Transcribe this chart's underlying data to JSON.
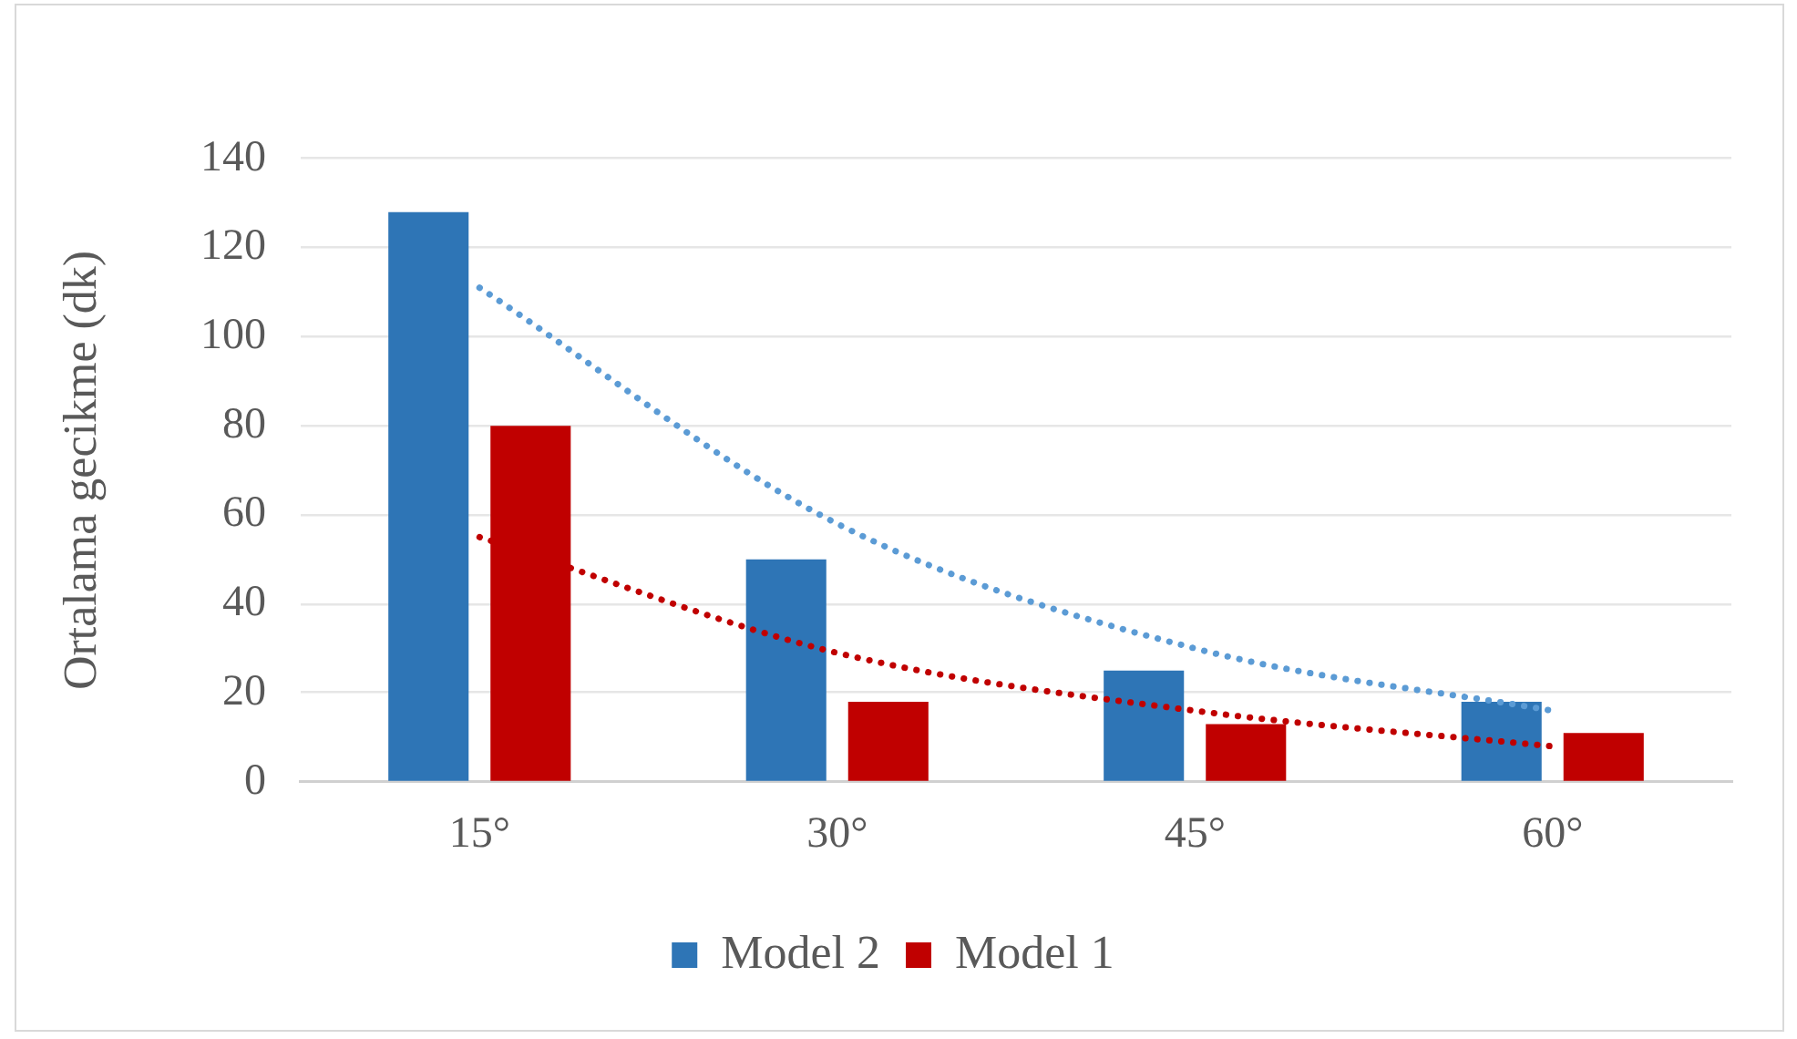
{
  "chart_data": {
    "type": "bar",
    "ylabel": "Ortalama gecikme (dk)",
    "categories": [
      "15°",
      "30°",
      "45°",
      "60°"
    ],
    "series": [
      {
        "name": "Model 2",
        "color": "#2e75b6",
        "values": [
          128,
          50,
          25,
          18
        ]
      },
      {
        "name": "Model 1",
        "color": "#c00000",
        "values": [
          80,
          18,
          13,
          11
        ]
      },
      {
        "type": "line",
        "color": "#5b9bd5",
        "values": [
          111,
          58,
          30,
          16
        ],
        "line_style": "dotted",
        "marker": "none"
      },
      {
        "type": "line",
        "color": "#c00000",
        "values": [
          55,
          29,
          16,
          8
        ],
        "line_style": "dotted",
        "marker": "none"
      }
    ],
    "ylim": [
      0,
      140
    ],
    "yticks": [
      0,
      20,
      40,
      60,
      80,
      100,
      120,
      140
    ],
    "grid": "y",
    "legend": "bottom"
  }
}
